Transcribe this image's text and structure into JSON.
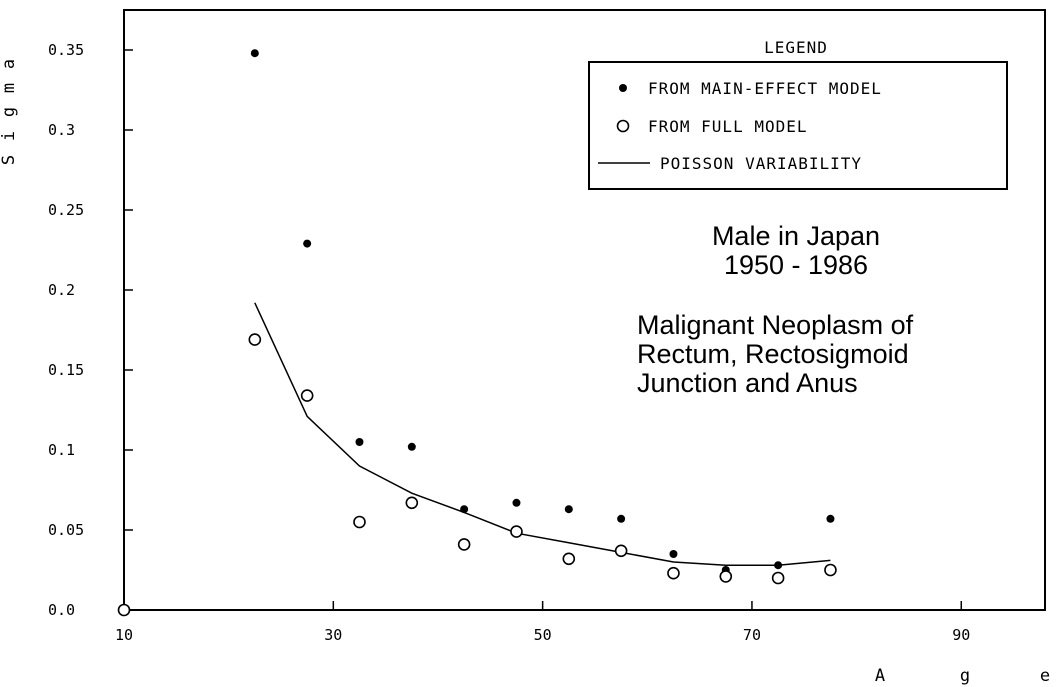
{
  "chart_data": {
    "type": "scatter",
    "xlabel": "Age",
    "ylabel": "Sigma",
    "xlim": [
      10,
      98
    ],
    "ylim": [
      0,
      0.375
    ],
    "xticks": [
      10,
      30,
      50,
      70,
      90
    ],
    "xtick_labels": [
      "10",
      "30",
      "50",
      "70",
      "90"
    ],
    "yticks": [
      0,
      0.05,
      0.1,
      0.15,
      0.2,
      0.25,
      0.3,
      0.35
    ],
    "ytick_labels": [
      "0.0",
      "0.05",
      "0.1",
      "0.15",
      "0.2",
      "0.25",
      "0.3",
      "0.35"
    ],
    "grid": false,
    "legend": {
      "title": "LEGEND",
      "placement": "top-right",
      "entries": [
        "FROM MAIN-EFFECT MODEL",
        "FROM FULL MODEL",
        "POISSON VARIABILITY"
      ]
    },
    "annotations": [
      [
        "Male in Japan",
        "1950 - 1986"
      ],
      [
        "Malignant Neoplasm of",
        "Rectum, Rectosigmoid",
        "Junction and Anus"
      ]
    ],
    "series": [
      {
        "name": "FROM MAIN-EFFECT MODEL",
        "marker": "filled-circle",
        "x": [
          22.5,
          27.5,
          32.5,
          37.5,
          42.5,
          47.5,
          52.5,
          57.5,
          62.5,
          67.5,
          72.5,
          77.5
        ],
        "y": [
          0.348,
          0.229,
          0.105,
          0.102,
          0.063,
          0.067,
          0.063,
          0.057,
          0.035,
          0.025,
          0.028,
          0.057
        ]
      },
      {
        "name": "FROM FULL MODEL",
        "marker": "open-circle",
        "x": [
          10,
          22.5,
          27.5,
          32.5,
          37.5,
          42.5,
          47.5,
          52.5,
          57.5,
          62.5,
          67.5,
          72.5,
          77.5
        ],
        "y": [
          0.0,
          0.169,
          0.134,
          0.055,
          0.067,
          0.041,
          0.049,
          0.032,
          0.037,
          0.023,
          0.021,
          0.02,
          0.025
        ]
      },
      {
        "name": "POISSON VARIABILITY",
        "marker": "line",
        "x": [
          22.5,
          27.5,
          32.5,
          37.5,
          42.5,
          47.5,
          52.5,
          57.5,
          62.5,
          67.5,
          72.5,
          77.5
        ],
        "y": [
          0.192,
          0.121,
          0.09,
          0.073,
          0.061,
          0.048,
          0.042,
          0.036,
          0.03,
          0.028,
          0.028,
          0.031
        ]
      }
    ]
  }
}
